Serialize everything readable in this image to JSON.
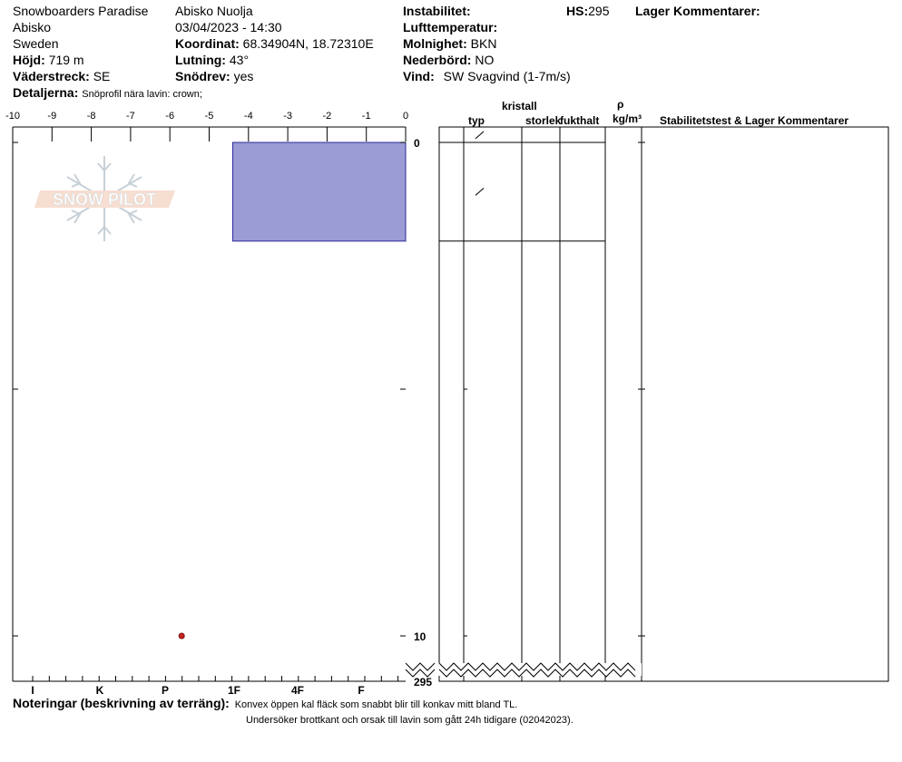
{
  "header": {
    "location": "Snowboarders Paradise",
    "area": "Abisko",
    "country": "Sweden",
    "elevation_label": "Höjd:",
    "elevation_value": "719 m",
    "aspect_label": "Väderstreck:",
    "aspect_value": "SE",
    "details_label": "Detaljerna:",
    "details_value": "Snöprofil nära lavin: crown;",
    "site": "Abisko Nuolja",
    "datetime": "03/04/2023 - 14:30",
    "coords_label": "Koordinat:",
    "coords_value": "68.34904N, 18.72310E",
    "slope_label": "Lutning:",
    "slope_value": "43°",
    "drift_label": "Snödrev:",
    "drift_value": "yes",
    "instability_label": "Instabilitet:",
    "airtemp_label": "Lufttemperatur:",
    "clouds_label": "Molnighet:",
    "clouds_value": "BKN",
    "precip_label": "Nederbörd:",
    "precip_value": "NO",
    "wind_label": "Vind:",
    "wind_value": "SW  Svagvind (1-7m/s)",
    "hs_label": "HS:",
    "hs_value": "295",
    "layer_comments_label": "Lager Kommentarer:"
  },
  "columns": {
    "crystal_header": "kristall",
    "type_header": "typ",
    "size_header": "storlek",
    "moisture_header": "fukthalt",
    "rho_header": "ρ",
    "density_unit_header": "kg/m³",
    "stability_header": "Stabilitetstest & Lager Kommentarer"
  },
  "notes": {
    "label": "Noteringar (beskrivning av terräng):",
    "line1": "Konvex öppen kal fläck som snabbt blir till konkav mitt bland TL.",
    "line2": "Undersöker brottkant och orsak till lavin som gått 24h tidigare (02042023)."
  },
  "watermark": {
    "text": "SNOW PILOT"
  },
  "chart_data": {
    "type": "bar",
    "temperature_axis": {
      "ticks": [
        -10,
        -9,
        -8,
        -7,
        -6,
        -5,
        -4,
        -3,
        -2,
        -1,
        0
      ],
      "tick_labels": [
        "-10",
        "-9",
        "-8",
        "-7",
        "-6",
        "-5",
        "-4",
        "-3",
        "-2",
        "-1",
        "0"
      ],
      "range": [
        -10,
        0
      ]
    },
    "hardness_axis": {
      "tick_labels": [
        "I",
        "K",
        "P",
        "1F",
        "4F",
        "F"
      ]
    },
    "depth_axis": {
      "ticks": [
        0,
        5,
        10
      ],
      "tick_labels": [
        "0",
        "",
        "10"
      ],
      "range": [
        -0.3,
        10
      ],
      "break_label": "295"
    },
    "layers": [
      {
        "top": 0,
        "bottom": 2,
        "hardness_temp": -4.4,
        "color": "#9b9bd6"
      }
    ],
    "layer_lines": [
      0,
      2
    ],
    "grain_symbols": [
      {
        "depth": -0.15,
        "symbol": "/"
      },
      {
        "depth": 1.0,
        "symbol": "/"
      }
    ],
    "temperature_points": [
      {
        "depth": 10,
        "temp": -5.7,
        "color": "#cc2222"
      }
    ]
  }
}
